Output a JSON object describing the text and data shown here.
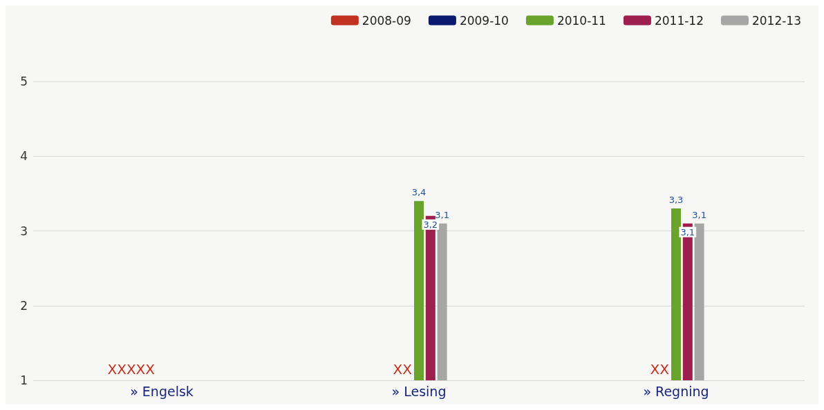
{
  "chart_data": {
    "type": "bar",
    "categories": [
      "» Engelsk",
      "» Lesing",
      "» Regning"
    ],
    "series": [
      {
        "name": "2008-09",
        "color": "#c0321f",
        "values": [
          null,
          null,
          null
        ],
        "value_labels": [
          null,
          null,
          null
        ]
      },
      {
        "name": "2009-10",
        "color": "#0b1a6e",
        "values": [
          null,
          null,
          null
        ],
        "value_labels": [
          null,
          null,
          null
        ]
      },
      {
        "name": "2010-11",
        "color": "#6aa32b",
        "values": [
          null,
          3.4,
          3.3
        ],
        "value_labels": [
          null,
          "3,4",
          "3,3"
        ]
      },
      {
        "name": "2011-12",
        "color": "#9c1f4e",
        "values": [
          null,
          3.2,
          3.1
        ],
        "value_labels": [
          null,
          "3,2",
          "3,1"
        ]
      },
      {
        "name": "2012-13",
        "color": "#a6a6a6",
        "values": [
          null,
          3.1,
          3.1
        ],
        "value_labels": [
          null,
          "3,1",
          "3,1"
        ]
      }
    ],
    "annotations": [
      "XXXXX",
      "XX",
      "XX"
    ],
    "ylim": [
      1,
      5
    ],
    "yticks": [
      1,
      2,
      3,
      4,
      5
    ],
    "grid": "y",
    "legend": "top right"
  }
}
